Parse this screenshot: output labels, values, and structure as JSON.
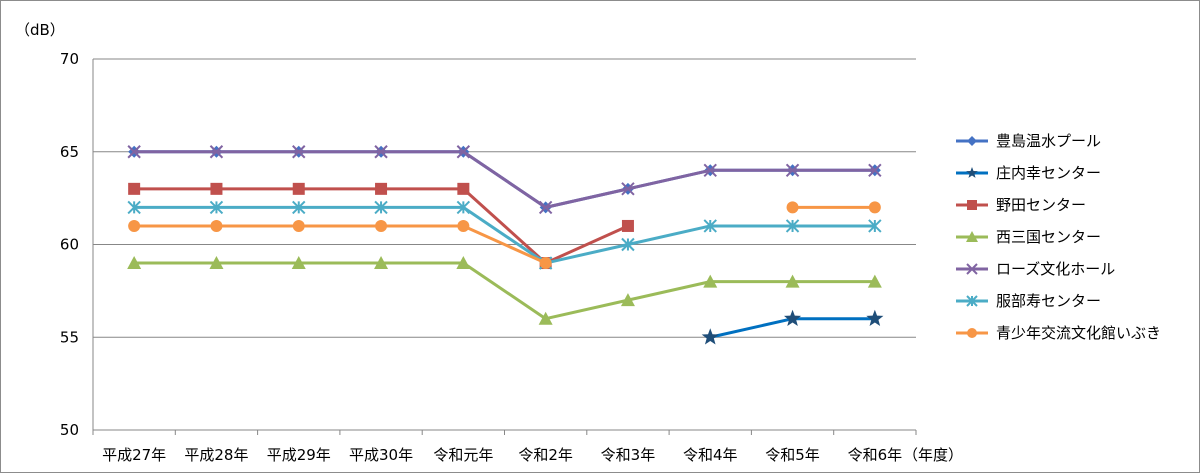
{
  "chart_data": {
    "type": "line",
    "title": "",
    "y_unit_label": "（dB）",
    "x_unit_label": "（年度）",
    "ylim": [
      50,
      70
    ],
    "y_ticks": [
      50,
      55,
      60,
      65,
      70
    ],
    "grid": "horizontal",
    "legend_position": "right",
    "categories": [
      "平成27年",
      "平成28年",
      "平成29年",
      "平成30年",
      "令和元年",
      "令和2年",
      "令和3年",
      "令和4年",
      "令和5年",
      "令和6年"
    ],
    "series": [
      {
        "name": "豊島温水プール",
        "color": "#4472C4",
        "marker": "diamond",
        "values": [
          65,
          65,
          65,
          65,
          65,
          62,
          63,
          64,
          64,
          64
        ]
      },
      {
        "name": "庄内幸センター",
        "color": "#0070C0",
        "marker": "star",
        "values": [
          null,
          null,
          null,
          null,
          null,
          null,
          null,
          55,
          56,
          56
        ]
      },
      {
        "name": "野田センター",
        "color": "#C0504D",
        "marker": "square",
        "values": [
          63,
          63,
          63,
          63,
          63,
          59,
          61,
          null,
          null,
          null
        ]
      },
      {
        "name": "西三国センター",
        "color": "#9BBB59",
        "marker": "triangle",
        "values": [
          59,
          59,
          59,
          59,
          59,
          56,
          57,
          58,
          58,
          58
        ]
      },
      {
        "name": "ローズ文化ホール",
        "color": "#8064A2",
        "marker": "x",
        "values": [
          65,
          65,
          65,
          65,
          65,
          62,
          63,
          64,
          64,
          64
        ]
      },
      {
        "name": "服部寿センター",
        "color": "#4BACC6",
        "marker": "asterisk",
        "values": [
          62,
          62,
          62,
          62,
          62,
          59,
          60,
          61,
          61,
          61
        ]
      },
      {
        "name": "青少年交流文化館いぶき",
        "color": "#F79646",
        "marker": "circle",
        "values": [
          61,
          61,
          61,
          61,
          61,
          59,
          null,
          null,
          62,
          62
        ]
      }
    ]
  }
}
